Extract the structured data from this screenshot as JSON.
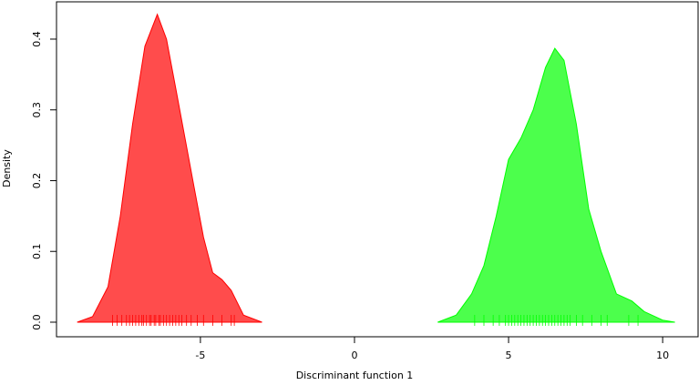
{
  "chart_data": {
    "type": "density",
    "xlabel": "Discriminant function 1",
    "ylabel": "Density",
    "xlim": [
      -9.67,
      11.15
    ],
    "ylim": [
      -0.0206,
      0.4527
    ],
    "xticks": [
      -5,
      0,
      5,
      10
    ],
    "yticks": [
      {
        "value": 0,
        "label": "0.0"
      },
      0.1,
      0.2,
      0.3,
      0.4
    ],
    "series": [
      {
        "color": "#ff0000",
        "x": [
          -9.0,
          -8.5,
          -8.0,
          -7.6,
          -7.2,
          -6.8,
          -6.4,
          -6.1,
          -5.8,
          -5.5,
          -5.2,
          -4.9,
          -4.6,
          -4.3,
          -4.0,
          -3.6,
          -3.0
        ],
        "values": [
          0.0,
          0.008,
          0.05,
          0.15,
          0.28,
          0.39,
          0.435,
          0.4,
          0.33,
          0.26,
          0.19,
          0.12,
          0.07,
          0.06,
          0.045,
          0.01,
          0.0
        ],
        "rug": [
          -7.85,
          -7.7,
          -7.55,
          -7.4,
          -7.3,
          -7.2,
          -7.1,
          -7.0,
          -6.9,
          -6.85,
          -6.75,
          -6.65,
          -6.6,
          -6.5,
          -6.45,
          -6.35,
          -6.3,
          -6.2,
          -6.1,
          -6.0,
          -5.9,
          -5.8,
          -5.7,
          -5.6,
          -5.45,
          -5.3,
          -5.1,
          -4.9,
          -4.6,
          -4.3,
          -4.0,
          -3.9
        ]
      },
      {
        "color": "#00ff00",
        "x": [
          2.7,
          3.3,
          3.8,
          4.2,
          4.6,
          5.0,
          5.4,
          5.8,
          6.2,
          6.5,
          6.8,
          7.2,
          7.6,
          8.0,
          8.5,
          9.0,
          9.4,
          10.0,
          10.4
        ],
        "values": [
          0.0,
          0.01,
          0.04,
          0.08,
          0.15,
          0.23,
          0.26,
          0.3,
          0.36,
          0.387,
          0.37,
          0.28,
          0.16,
          0.1,
          0.04,
          0.03,
          0.015,
          0.003,
          0.0
        ],
        "rug": [
          3.9,
          4.2,
          4.5,
          4.7,
          4.9,
          5.0,
          5.1,
          5.2,
          5.3,
          5.4,
          5.5,
          5.6,
          5.7,
          5.8,
          5.9,
          6.0,
          6.1,
          6.2,
          6.3,
          6.4,
          6.5,
          6.6,
          6.7,
          6.8,
          6.9,
          7.0,
          7.2,
          7.4,
          7.7,
          8.0,
          8.2,
          8.9,
          9.2
        ]
      }
    ]
  }
}
